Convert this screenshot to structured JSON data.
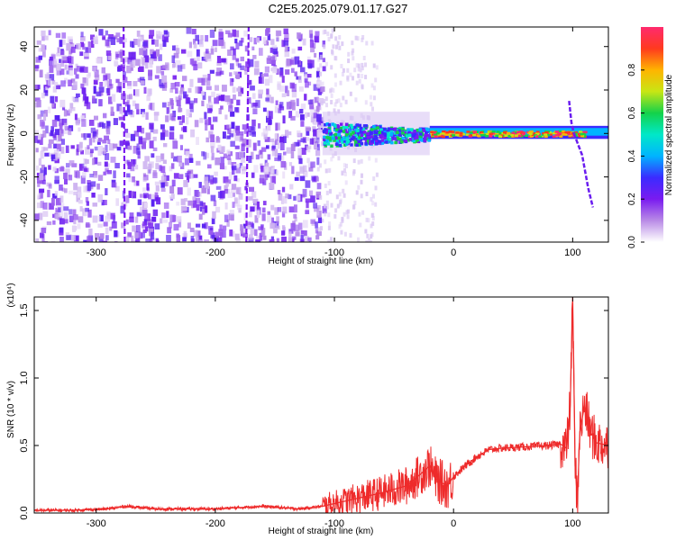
{
  "title": "C2E5.2025.079.01.17.G27",
  "chart_data": [
    {
      "type": "heatmap",
      "xlabel": "Height of straight line (km)",
      "ylabel": "Frequency (Hz)",
      "xlim": [
        -352,
        130
      ],
      "ylim": [
        -50,
        49
      ],
      "x_ticks": [
        -300,
        -200,
        -100,
        0,
        100
      ],
      "y_ticks": [
        -40,
        -20,
        0,
        20,
        40
      ],
      "colorbar": {
        "label": "Normalized spectral amplitude",
        "range": [
          0,
          1
        ],
        "ticks": [
          "0.0",
          "0.2",
          "0.4",
          "0.6",
          "0.8"
        ],
        "colors": [
          "#ffffff",
          "#b98be6",
          "#7a1bf0",
          "#3b2bff",
          "#00b4ff",
          "#00e8c8",
          "#14d24a",
          "#c8e614",
          "#ffb400",
          "#ff3a1e",
          "#ff2a6e"
        ]
      },
      "regions": [
        {
          "x_from": -352,
          "x_to": -110,
          "freq_band": [
            -50,
            49
          ],
          "amplitude": "0.05-0.3 (dense broadband noise)"
        },
        {
          "x_from": -110,
          "x_to": -20,
          "freq_band": [
            -6,
            6
          ],
          "amplitude": "0.3-0.7"
        },
        {
          "x_from": -20,
          "x_to": 130,
          "freq_band": [
            -2,
            3
          ],
          "amplitude": "0.5-1.0 (narrow line near 0-1 Hz)"
        }
      ],
      "tracks": [
        {
          "x": [
            -276,
            -277
          ],
          "y": [
            -50,
            49
          ]
        },
        {
          "x": [
            -174,
            -172
          ],
          "y": [
            -50,
            49
          ]
        },
        {
          "x": [
            97,
            99,
            101
          ],
          "y": [
            15,
            5,
            0
          ]
        },
        {
          "x": [
            101,
            108,
            113,
            117
          ],
          "y": [
            0,
            -10,
            -25,
            -34
          ]
        }
      ]
    },
    {
      "type": "line",
      "xlabel": "Height of straight line (km)",
      "ylabel": "SNR (10 * v/v)",
      "y_multiplier": "(x10⁴)",
      "xlim": [
        -352,
        130
      ],
      "ylim": [
        0,
        1.6
      ],
      "x_ticks": [
        -300,
        -200,
        -100,
        0,
        100
      ],
      "y_ticks": [
        "0.0",
        "0.5",
        "1.0",
        "1.5"
      ],
      "series": [
        {
          "color": "#ee2b2b",
          "x": [
            -352,
            -320,
            -290,
            -275,
            -250,
            -200,
            -160,
            -130,
            -110,
            -100,
            -80,
            -60,
            -40,
            -30,
            -20,
            -15,
            -5,
            0,
            10,
            20,
            30,
            40,
            60,
            80,
            90,
            95,
            98,
            100,
            102,
            104,
            106,
            110,
            115,
            120,
            130
          ],
          "y": [
            0.02,
            0.02,
            0.03,
            0.05,
            0.03,
            0.03,
            0.05,
            0.03,
            0.05,
            0.07,
            0.11,
            0.15,
            0.2,
            0.27,
            0.35,
            0.25,
            0.2,
            0.27,
            0.35,
            0.42,
            0.47,
            0.48,
            0.49,
            0.5,
            0.51,
            0.48,
            0.8,
            1.6,
            0.35,
            0.1,
            0.6,
            0.8,
            0.6,
            0.52,
            0.5
          ]
        }
      ]
    }
  ]
}
